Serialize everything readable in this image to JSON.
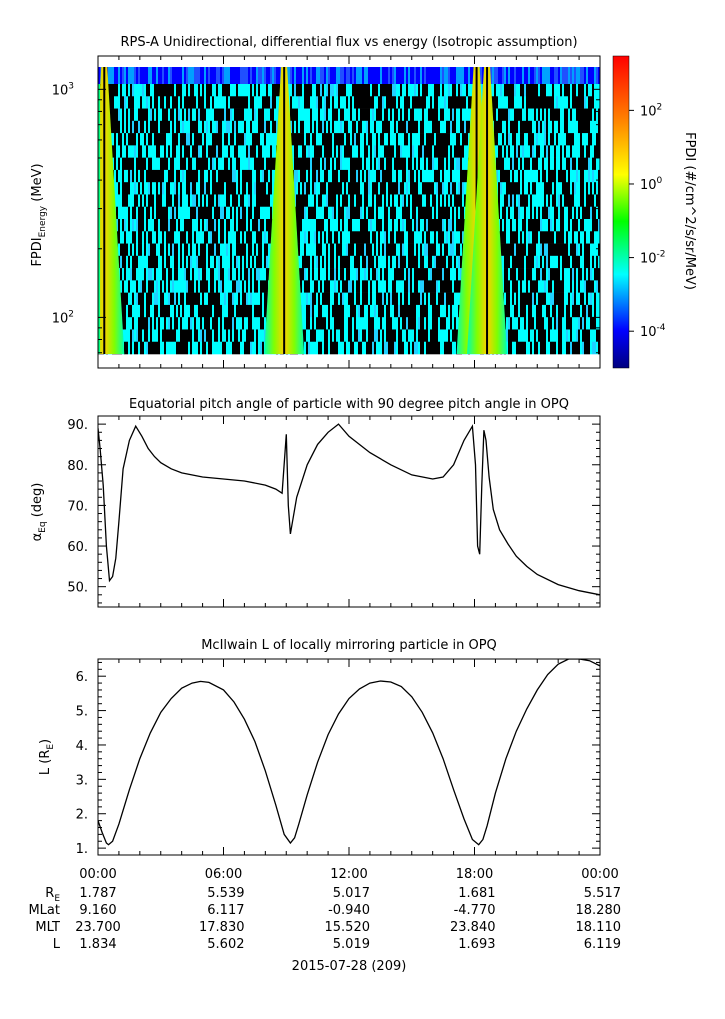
{
  "chart_data": [
    {
      "type": "heatmap",
      "title": "RPS-A Unidirectional, differential flux vs energy (Isotropic assumption)",
      "ylabel_main": "FPDI",
      "ylabel_sub": "Energy",
      "ylabel_unit": "(MeV)",
      "y_scale": "log",
      "ylim": [
        60,
        1400
      ],
      "y_ticks": [
        {
          "value": 100,
          "base": "10",
          "exp": "2"
        },
        {
          "value": 1000,
          "base": "10",
          "exp": "3"
        }
      ],
      "colorbar": {
        "label": "FPDI (#/cm^2/s/sr/MeV)",
        "scale": "log",
        "range": [
          1e-05,
          3000
        ],
        "ticks": [
          {
            "value": 0.0001,
            "base": "10",
            "exp": "-4"
          },
          {
            "value": 0.01,
            "base": "10",
            "exp": "-2"
          },
          {
            "value": 1,
            "base": "10",
            "exp": "0"
          },
          {
            "value": 100,
            "base": "10",
            "exp": "2"
          }
        ]
      },
      "bright_bands_hours": [
        0.3,
        8.9,
        18.1,
        18.6
      ],
      "xlim_hours": [
        0,
        24
      ]
    },
    {
      "type": "line",
      "title": "Equatorial pitch angle of particle with 90 degree pitch angle in OPQ",
      "ylabel_base": "α",
      "ylabel_sub": "Eq",
      "ylabel_unit": "(deg)",
      "ylim": [
        45,
        92
      ],
      "y_ticks": [
        "50.",
        "60.",
        "70.",
        "80.",
        "90."
      ],
      "xlim_hours": [
        0,
        24
      ],
      "series": [
        {
          "x": [
            0,
            0.1,
            0.25,
            0.4,
            0.55,
            0.7,
            0.85,
            1,
            1.2,
            1.5,
            1.8,
            2.1,
            2.4,
            2.7,
            3,
            3.5,
            4,
            5,
            6,
            7,
            8,
            8.5,
            8.8,
            9.0,
            9.1,
            9.2,
            9.3,
            9.5,
            10,
            10.5,
            11,
            11.5,
            12,
            13,
            14,
            15,
            16,
            16.5,
            17,
            17.5,
            17.9,
            18.05,
            18.15,
            18.25,
            18.35,
            18.45,
            18.55,
            18.7,
            18.9,
            19.2,
            19.6,
            20,
            20.5,
            21,
            22,
            23,
            24
          ],
          "y": [
            89,
            84,
            75,
            60,
            51.5,
            52.5,
            57,
            66,
            79,
            86,
            89.5,
            87,
            84,
            82,
            80.5,
            79,
            78,
            77,
            76.5,
            76,
            75,
            74,
            73,
            87.5,
            70,
            63,
            66,
            72,
            80,
            85,
            88,
            90,
            87,
            83,
            80,
            77.5,
            76.5,
            77,
            80,
            86,
            89.5,
            80,
            60,
            58,
            75,
            88.5,
            86,
            77,
            69,
            64,
            60.5,
            57.5,
            55,
            53,
            50.5,
            49,
            48
          ]
        }
      ]
    },
    {
      "type": "line",
      "title": "McIlwain L of locally mirroring particle in OPQ",
      "ylabel_base": "L (R",
      "ylabel_sub": "E",
      "ylabel_unit": ")",
      "ylim": [
        0.8,
        6.5
      ],
      "y_ticks": [
        "1.",
        "2.",
        "3.",
        "4.",
        "5.",
        "6."
      ],
      "xlim_hours": [
        0,
        24
      ],
      "series": [
        {
          "x": [
            0,
            0.2,
            0.4,
            0.5,
            0.7,
            1,
            1.5,
            2,
            2.5,
            3,
            3.5,
            4,
            4.5,
            4.9,
            5.3,
            6,
            6.5,
            7,
            7.5,
            8,
            8.5,
            8.9,
            9.2,
            9.4,
            9.6,
            10,
            10.5,
            11,
            11.5,
            12,
            12.5,
            13,
            13.5,
            14,
            14.5,
            15,
            15.5,
            16,
            16.5,
            17,
            17.5,
            17.9,
            18.2,
            18.4,
            18.6,
            19,
            19.5,
            20,
            20.5,
            21,
            21.5,
            22,
            22.5,
            23,
            23.5,
            24
          ],
          "y": [
            1.8,
            1.45,
            1.15,
            1.1,
            1.2,
            1.7,
            2.7,
            3.6,
            4.35,
            4.95,
            5.35,
            5.65,
            5.8,
            5.85,
            5.82,
            5.6,
            5.25,
            4.75,
            4.1,
            3.25,
            2.25,
            1.4,
            1.15,
            1.3,
            1.7,
            2.55,
            3.5,
            4.3,
            4.9,
            5.35,
            5.63,
            5.8,
            5.86,
            5.83,
            5.7,
            5.4,
            4.95,
            4.35,
            3.6,
            2.7,
            1.85,
            1.25,
            1.1,
            1.25,
            1.65,
            2.6,
            3.6,
            4.4,
            5.05,
            5.6,
            6.05,
            6.35,
            6.5,
            6.5,
            6.45,
            6.3
          ]
        }
      ]
    }
  ],
  "x_axis": {
    "tick_labels": [
      "00:00",
      "06:00",
      "12:00",
      "18:00",
      "00:00"
    ],
    "rows": [
      {
        "label": "R",
        "label_sub": "E",
        "values": [
          "1.787",
          "5.539",
          "5.017",
          "1.681",
          "5.517"
        ]
      },
      {
        "label": "MLat",
        "label_sub": "",
        "values": [
          "9.160",
          "6.117",
          "-0.940",
          "-4.770",
          "18.280"
        ]
      },
      {
        "label": "MLT",
        "label_sub": "",
        "values": [
          "23.700",
          "17.830",
          "15.520",
          "23.840",
          "18.110"
        ]
      },
      {
        "label": "L",
        "label_sub": "",
        "values": [
          "1.834",
          "5.602",
          "5.019",
          "1.693",
          "6.119"
        ]
      }
    ],
    "date_label": "2015-07-28 (209)"
  }
}
